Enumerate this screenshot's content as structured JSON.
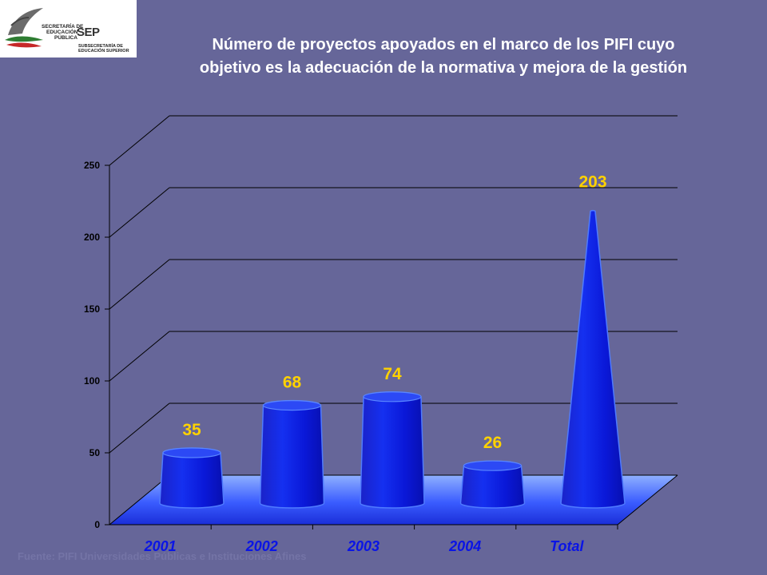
{
  "logo": {
    "line1": "SECRETARÍA DE",
    "line2": "EDUCACIÓN",
    "line3": "PÚBLICA",
    "acronym": "SEP",
    "sub1": "SUBSECRETARÍA DE",
    "sub2": "EDUCACIÓN SUPERIOR"
  },
  "title": "Número de proyectos apoyados en el marco de los PIFI cuyo objetivo es la adecuación de la normativa y mejora de la gestión",
  "source": "Fuente: PIFI Universidades Públicas e Instituciones Afines",
  "colors": {
    "background": "#666699",
    "bar": "#0a14e6",
    "bar_top": "#2c49f5",
    "label": "#ffd200",
    "floor": "#3355ff"
  },
  "chart_data": {
    "type": "bar",
    "title": "Número de proyectos apoyados en el marco de los PIFI cuyo objetivo es la adecuación de la normativa y mejora de la gestión",
    "categories": [
      "2001",
      "2002",
      "2003",
      "2004",
      "Total"
    ],
    "values": [
      35,
      68,
      74,
      26,
      203
    ],
    "data_labels": [
      "35",
      "68",
      "74",
      "26",
      "203"
    ],
    "yticks": [
      "0",
      "50",
      "100",
      "150",
      "200",
      "250"
    ],
    "ylim": [
      0,
      250
    ],
    "xlabel": "",
    "ylabel": "",
    "grid": true,
    "legend": "none"
  }
}
